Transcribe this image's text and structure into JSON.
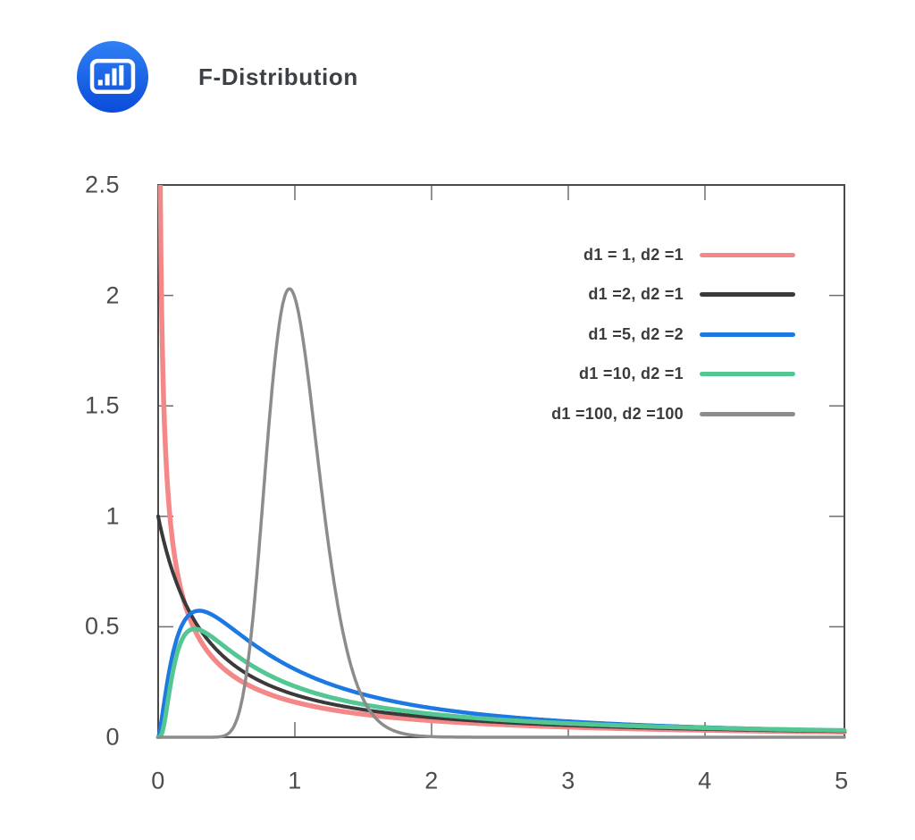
{
  "header": {
    "title": "F-Distribution",
    "icon": "bar-chart-icon"
  },
  "colors": {
    "background": "#FFFFFF",
    "icon_gradient_top": "#2F80F5",
    "icon_gradient_bottom": "#0A4CD9",
    "plot_border": "#4A4A4A",
    "tick_mark": "#6E6E6E",
    "tick_label": "#4C4C4C",
    "title_text": "#3D4145",
    "legend_text": "#3B3B3B"
  },
  "chart_data": {
    "type": "line",
    "title": "F-Distribution",
    "xlabel": "",
    "ylabel": "",
    "xlim": [
      0,
      5.02
    ],
    "ylim": [
      0,
      2.5
    ],
    "xticks": [
      0,
      1,
      2,
      3,
      4,
      5
    ],
    "yticks": [
      0,
      0.5,
      1,
      1.5,
      2,
      2.5
    ],
    "grid": false,
    "legend_position": "top-right-inside",
    "curve_family": "F-distribution probability density f(x; d1, d2)",
    "series": [
      {
        "label": "d1 = 1, d2 =1",
        "d1": 1,
        "d2": 1,
        "color": "#F48888",
        "stroke_width": 5.5,
        "sample_x": [
          0.05,
          0.1,
          0.2,
          0.3,
          0.5,
          0.75,
          1,
          1.5,
          2,
          3,
          4,
          5
        ],
        "sample_y": [
          1.36,
          0.92,
          0.59,
          0.45,
          0.3,
          0.21,
          0.16,
          0.1,
          0.075,
          0.046,
          0.032,
          0.024
        ]
      },
      {
        "label": "d1 =2, d2 =1",
        "d1": 2,
        "d2": 1,
        "color": "#3A3A3A",
        "stroke_width": 4,
        "sample_x": [
          0,
          0.1,
          0.2,
          0.3,
          0.5,
          0.75,
          1,
          1.5,
          2,
          3,
          4,
          5
        ],
        "sample_y": [
          1.0,
          0.76,
          0.6,
          0.49,
          0.35,
          0.25,
          0.19,
          0.125,
          0.089,
          0.054,
          0.037,
          0.027
        ]
      },
      {
        "label": "d1 =5, d2 =2",
        "d1": 5,
        "d2": 2,
        "color": "#1C78E2",
        "stroke_width": 4.5,
        "sample_x": [
          0,
          0.1,
          0.2,
          0.3,
          0.4,
          0.5,
          0.75,
          1,
          1.5,
          2,
          3,
          4,
          5
        ],
        "sample_y": [
          0,
          0.36,
          0.53,
          0.57,
          0.55,
          0.51,
          0.4,
          0.31,
          0.19,
          0.13,
          0.072,
          0.045,
          0.031
        ]
      },
      {
        "label": "d1 =10, d2 =1",
        "d1": 10,
        "d2": 1,
        "color": "#53C693",
        "stroke_width": 5,
        "sample_x": [
          0,
          0.1,
          0.2,
          0.3,
          0.4,
          0.5,
          0.75,
          1,
          1.5,
          2,
          3,
          4,
          5
        ],
        "sample_y": [
          0,
          0.27,
          0.47,
          0.49,
          0.45,
          0.4,
          0.3,
          0.23,
          0.15,
          0.105,
          0.063,
          0.042,
          0.031
        ]
      },
      {
        "label": "d1 =100, d2 =100",
        "d1": 100,
        "d2": 100,
        "color": "#8C8C8C",
        "stroke_width": 3.5,
        "sample_x": [
          0,
          0.5,
          0.6,
          0.7,
          0.8,
          0.9,
          0.96,
          1,
          1.1,
          1.2,
          1.3,
          1.5,
          1.7,
          2,
          2.5,
          5
        ],
        "sample_y": [
          0,
          0.011,
          0.13,
          0.58,
          1.33,
          1.92,
          2.03,
          1.98,
          1.61,
          1.09,
          0.65,
          0.17,
          0.04,
          0.003,
          0,
          0
        ]
      }
    ]
  }
}
